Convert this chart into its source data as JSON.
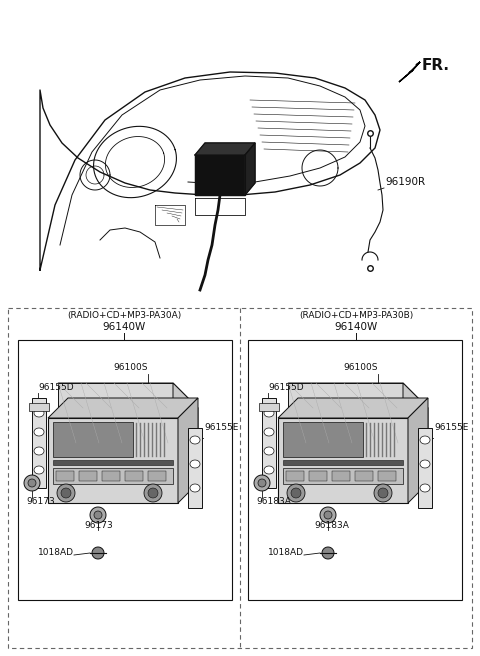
{
  "bg_color": "#ffffff",
  "line_color": "#111111",
  "dash_color": "#666666",
  "fr_label": "FR.",
  "part_96190R": "96190R",
  "left_title1": "(RADIO+CD+MP3-PA30A)",
  "left_title2": "96140W",
  "right_title1": "(RADIO+CD+MP3-PA30B)",
  "right_title2": "96140W",
  "fs_tiny": 6.5,
  "fs_small": 7.5,
  "fs_med": 8.5,
  "fs_fr": 11
}
